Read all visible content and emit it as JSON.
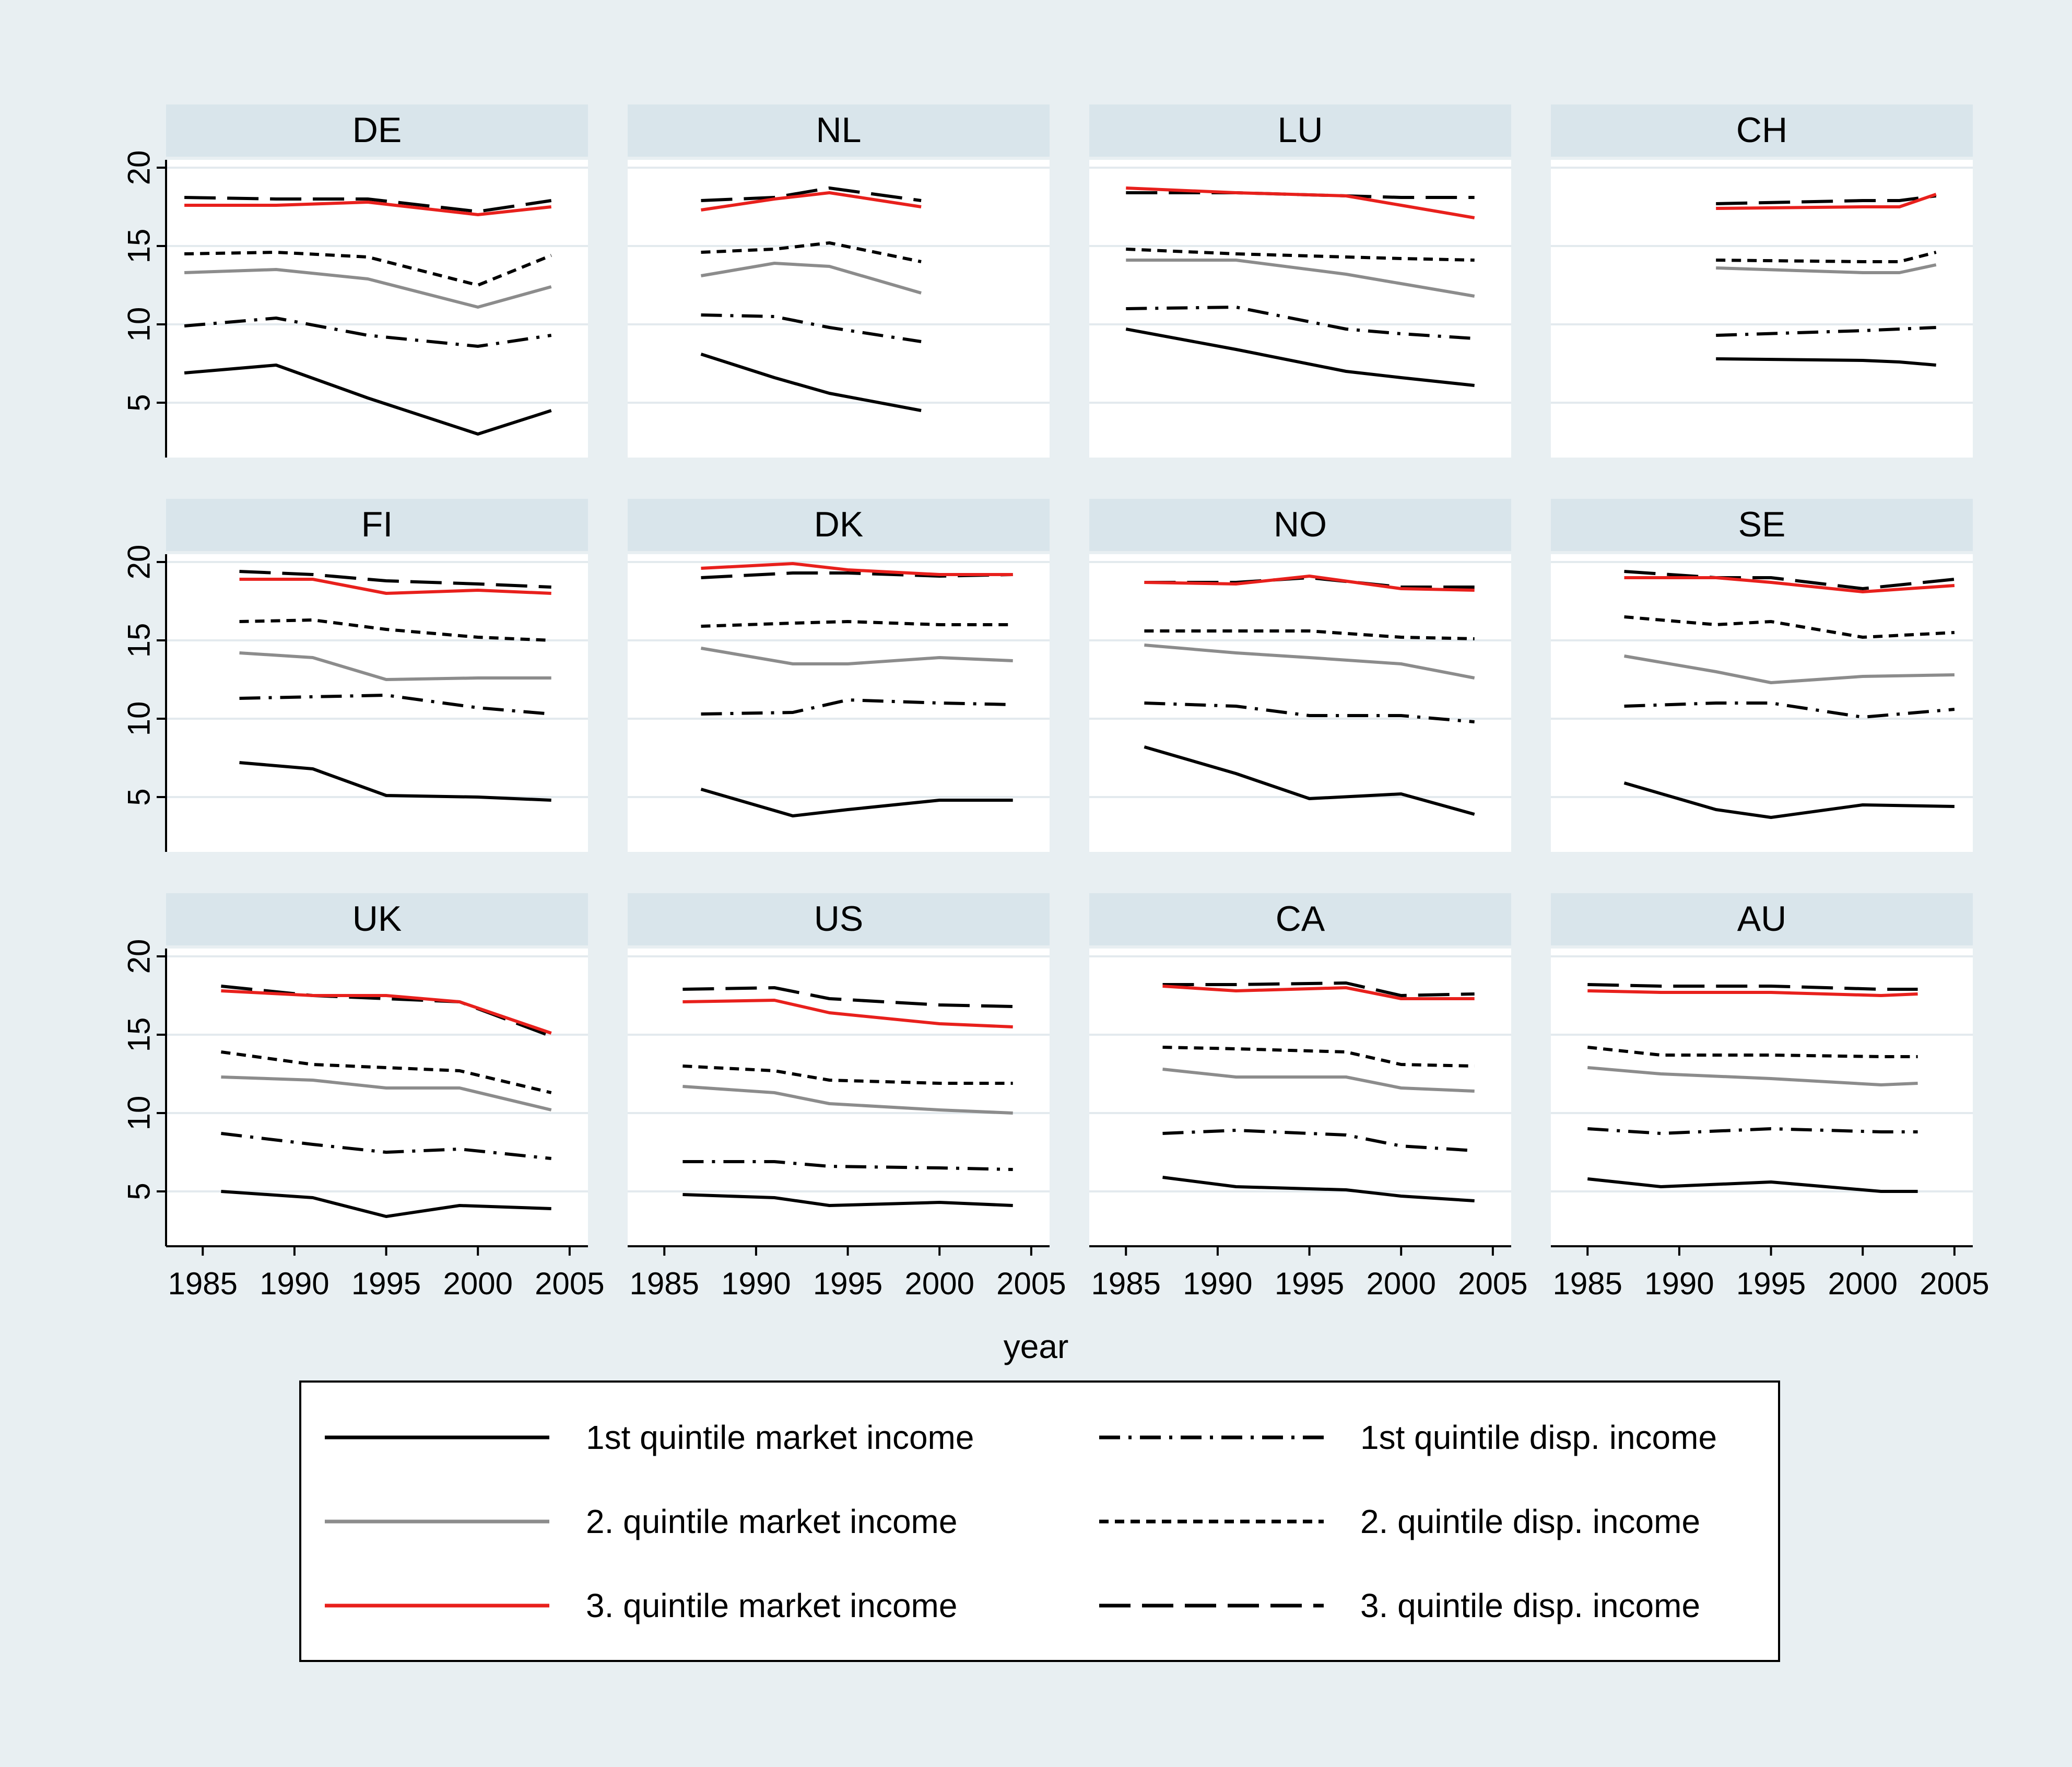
{
  "chart_data": {
    "type": "line",
    "xlabel": "year",
    "ylabel": "",
    "xlim": [
      1983,
      2006
    ],
    "ylim": [
      1.5,
      20.5
    ],
    "xticks": [
      1985,
      1990,
      1995,
      2000,
      2005
    ],
    "yticks": [
      5,
      10,
      15,
      20
    ],
    "grid": true,
    "legend_position": "bottom",
    "colors": {
      "outer_background": "#e8eff2",
      "panel_header": "#d9e5eb",
      "plot_background": "#ffffff",
      "gridline": "#e3eaee",
      "black": "#000000",
      "gray": "#8c8c8c",
      "red": "#e8201c"
    },
    "series_styles": [
      {
        "name": "1st quintile market income",
        "color": "#000000",
        "dash": "solid"
      },
      {
        "name": "2. quintile market income",
        "color": "#8c8c8c",
        "dash": "solid"
      },
      {
        "name": "3. quintile market income",
        "color": "#e8201c",
        "dash": "solid"
      },
      {
        "name": "1st quintile disp. income",
        "color": "#000000",
        "dash": "dashdot"
      },
      {
        "name": "2. quintile disp. income",
        "color": "#000000",
        "dash": "short"
      },
      {
        "name": "3. quintile disp. income",
        "color": "#000000",
        "dash": "long"
      }
    ],
    "legend": [
      "1st quintile market income",
      "1st quintile disp. income",
      "2. quintile market income",
      "2. quintile disp. income",
      "3. quintile market income",
      "3. quintile disp. income"
    ],
    "panels": [
      {
        "title": "DE",
        "x": [
          1984,
          1989,
          1994,
          2000,
          2004
        ],
        "series": [
          {
            "name": "1st quintile market income",
            "values": [
              6.9,
              7.4,
              5.3,
              3.0,
              4.5
            ]
          },
          {
            "name": "2. quintile market income",
            "values": [
              13.3,
              13.5,
              12.9,
              11.1,
              12.4
            ]
          },
          {
            "name": "3. quintile market income",
            "values": [
              17.6,
              17.6,
              17.8,
              17.0,
              17.5
            ]
          },
          {
            "name": "1st quintile disp. income",
            "values": [
              9.9,
              10.4,
              9.3,
              8.6,
              9.3
            ]
          },
          {
            "name": "2. quintile disp. income",
            "values": [
              14.5,
              14.6,
              14.3,
              12.5,
              14.4
            ]
          },
          {
            "name": "3. quintile disp. income",
            "values": [
              18.1,
              18.0,
              18.0,
              17.2,
              17.9
            ]
          }
        ]
      },
      {
        "title": "NL",
        "x": [
          1987,
          1991,
          1994,
          1999
        ],
        "series": [
          {
            "name": "1st quintile market income",
            "values": [
              8.1,
              6.6,
              5.6,
              4.5
            ]
          },
          {
            "name": "2. quintile market income",
            "values": [
              13.1,
              13.9,
              13.7,
              12.0
            ]
          },
          {
            "name": "3. quintile market income",
            "values": [
              17.3,
              18.0,
              18.4,
              17.5
            ]
          },
          {
            "name": "1st quintile disp. income",
            "values": [
              10.6,
              10.5,
              9.8,
              8.9
            ]
          },
          {
            "name": "2. quintile disp. income",
            "values": [
              14.6,
              14.8,
              15.2,
              14.0
            ]
          },
          {
            "name": "3. quintile disp. income",
            "values": [
              17.9,
              18.1,
              18.7,
              17.9
            ]
          }
        ]
      },
      {
        "title": "LU",
        "x": [
          1985,
          1991,
          1997,
          2000,
          2004
        ],
        "series": [
          {
            "name": "1st quintile market income",
            "values": [
              9.7,
              8.4,
              7.0,
              6.6,
              6.1
            ]
          },
          {
            "name": "2. quintile market income",
            "values": [
              14.1,
              14.1,
              13.2,
              12.6,
              11.8
            ]
          },
          {
            "name": "3. quintile market income",
            "values": [
              18.7,
              18.4,
              18.2,
              17.6,
              16.8
            ]
          },
          {
            "name": "1st quintile disp. income",
            "values": [
              11.0,
              11.1,
              9.7,
              9.4,
              9.1
            ]
          },
          {
            "name": "2. quintile disp. income",
            "values": [
              14.8,
              14.5,
              14.3,
              14.2,
              14.1
            ]
          },
          {
            "name": "3. quintile disp. income",
            "values": [
              18.4,
              18.4,
              18.2,
              18.1,
              18.1
            ]
          }
        ]
      },
      {
        "title": "CH",
        "x": [
          1992,
          2000,
          2002,
          2004
        ],
        "series": [
          {
            "name": "1st quintile market income",
            "values": [
              7.8,
              7.7,
              7.6,
              7.4
            ]
          },
          {
            "name": "2. quintile market income",
            "values": [
              13.6,
              13.3,
              13.3,
              13.8
            ]
          },
          {
            "name": "3. quintile market income",
            "values": [
              17.4,
              17.5,
              17.5,
              18.3
            ]
          },
          {
            "name": "1st quintile disp. income",
            "values": [
              9.3,
              9.6,
              9.7,
              9.8
            ]
          },
          {
            "name": "2. quintile disp. income",
            "values": [
              14.1,
              14.0,
              14.0,
              14.6
            ]
          },
          {
            "name": "3. quintile disp. income",
            "values": [
              17.7,
              17.9,
              17.9,
              18.2
            ]
          }
        ]
      },
      {
        "title": "FI",
        "x": [
          1987,
          1991,
          1995,
          2000,
          2004
        ],
        "series": [
          {
            "name": "1st quintile market income",
            "values": [
              7.2,
              6.8,
              5.1,
              5.0,
              4.8
            ]
          },
          {
            "name": "2. quintile market income",
            "values": [
              14.2,
              13.9,
              12.5,
              12.6,
              12.6
            ]
          },
          {
            "name": "3. quintile market income",
            "values": [
              18.9,
              18.9,
              18.0,
              18.2,
              18.0
            ]
          },
          {
            "name": "1st quintile disp. income",
            "values": [
              11.3,
              11.4,
              11.5,
              10.7,
              10.3
            ]
          },
          {
            "name": "2. quintile disp. income",
            "values": [
              16.2,
              16.3,
              15.7,
              15.2,
              15.0
            ]
          },
          {
            "name": "3. quintile disp. income",
            "values": [
              19.4,
              19.2,
              18.8,
              18.6,
              18.4
            ]
          }
        ]
      },
      {
        "title": "DK",
        "x": [
          1987,
          1992,
          1995,
          2000,
          2004
        ],
        "series": [
          {
            "name": "1st quintile market income",
            "values": [
              5.5,
              3.8,
              4.2,
              4.8,
              4.8
            ]
          },
          {
            "name": "2. quintile market income",
            "values": [
              14.5,
              13.5,
              13.5,
              13.9,
              13.7
            ]
          },
          {
            "name": "3. quintile market income",
            "values": [
              19.6,
              19.9,
              19.5,
              19.2,
              19.2
            ]
          },
          {
            "name": "1st quintile disp. income",
            "values": [
              10.3,
              10.4,
              11.2,
              11.0,
              10.9
            ]
          },
          {
            "name": "2. quintile disp. income",
            "values": [
              15.9,
              16.1,
              16.2,
              16.0,
              16.0
            ]
          },
          {
            "name": "3. quintile disp. income",
            "values": [
              19.0,
              19.3,
              19.3,
              19.1,
              19.2
            ]
          }
        ]
      },
      {
        "title": "NO",
        "x": [
          1986,
          1991,
          1995,
          2000,
          2004
        ],
        "series": [
          {
            "name": "1st quintile market income",
            "values": [
              8.2,
              6.5,
              4.9,
              5.2,
              3.9
            ]
          },
          {
            "name": "2. quintile market income",
            "values": [
              14.7,
              14.2,
              13.9,
              13.5,
              12.6
            ]
          },
          {
            "name": "3. quintile market income",
            "values": [
              18.7,
              18.6,
              19.1,
              18.3,
              18.2
            ]
          },
          {
            "name": "1st quintile disp. income",
            "values": [
              11.0,
              10.8,
              10.2,
              10.2,
              9.8
            ]
          },
          {
            "name": "2. quintile disp. income",
            "values": [
              15.6,
              15.6,
              15.6,
              15.2,
              15.1
            ]
          },
          {
            "name": "3. quintile disp. income",
            "values": [
              18.7,
              18.7,
              19.0,
              18.4,
              18.4
            ]
          }
        ]
      },
      {
        "title": "SE",
        "x": [
          1987,
          1992,
          1995,
          2000,
          2005
        ],
        "series": [
          {
            "name": "1st quintile market income",
            "values": [
              5.9,
              4.2,
              3.7,
              4.5,
              4.4
            ]
          },
          {
            "name": "2. quintile market income",
            "values": [
              14.0,
              13.0,
              12.3,
              12.7,
              12.8
            ]
          },
          {
            "name": "3. quintile market income",
            "values": [
              19.0,
              19.0,
              18.7,
              18.1,
              18.5
            ]
          },
          {
            "name": "1st quintile disp. income",
            "values": [
              10.8,
              11.0,
              11.0,
              10.1,
              10.6
            ]
          },
          {
            "name": "2. quintile disp. income",
            "values": [
              16.5,
              16.0,
              16.2,
              15.2,
              15.5
            ]
          },
          {
            "name": "3. quintile disp. income",
            "values": [
              19.4,
              19.0,
              19.0,
              18.3,
              18.9
            ]
          }
        ]
      },
      {
        "title": "UK",
        "x": [
          1986,
          1991,
          1995,
          1999,
          2004
        ],
        "series": [
          {
            "name": "1st quintile market income",
            "values": [
              5.0,
              4.6,
              3.4,
              4.1,
              3.9
            ]
          },
          {
            "name": "2. quintile market income",
            "values": [
              12.3,
              12.1,
              11.6,
              11.6,
              10.2
            ]
          },
          {
            "name": "3. quintile market income",
            "values": [
              17.8,
              17.5,
              17.5,
              17.1,
              15.1
            ]
          },
          {
            "name": "1st quintile disp. income",
            "values": [
              8.7,
              8.0,
              7.5,
              7.7,
              7.1
            ]
          },
          {
            "name": "2. quintile disp. income",
            "values": [
              13.9,
              13.1,
              12.9,
              12.7,
              11.3
            ]
          },
          {
            "name": "3. quintile disp. income",
            "values": [
              18.1,
              17.5,
              17.3,
              17.1,
              14.9
            ]
          }
        ]
      },
      {
        "title": "US",
        "x": [
          1986,
          1991,
          1994,
          2000,
          2004
        ],
        "series": [
          {
            "name": "1st quintile market income",
            "values": [
              4.8,
              4.6,
              4.1,
              4.3,
              4.1
            ]
          },
          {
            "name": "2. quintile market income",
            "values": [
              11.7,
              11.3,
              10.6,
              10.2,
              10.0
            ]
          },
          {
            "name": "3. quintile market income",
            "values": [
              17.1,
              17.2,
              16.4,
              15.7,
              15.5
            ]
          },
          {
            "name": "1st quintile disp. income",
            "values": [
              6.9,
              6.9,
              6.6,
              6.5,
              6.4
            ]
          },
          {
            "name": "2. quintile disp. income",
            "values": [
              13.0,
              12.7,
              12.1,
              11.9,
              11.9
            ]
          },
          {
            "name": "3. quintile disp. income",
            "values": [
              17.9,
              18.0,
              17.3,
              16.9,
              16.8
            ]
          }
        ]
      },
      {
        "title": "CA",
        "x": [
          1987,
          1991,
          1997,
          2000,
          2004
        ],
        "series": [
          {
            "name": "1st quintile market income",
            "values": [
              5.9,
              5.3,
              5.1,
              4.7,
              4.4
            ]
          },
          {
            "name": "2. quintile market income",
            "values": [
              12.8,
              12.3,
              12.3,
              11.6,
              11.4
            ]
          },
          {
            "name": "3. quintile market income",
            "values": [
              18.1,
              17.8,
              18.0,
              17.3,
              17.3
            ]
          },
          {
            "name": "1st quintile disp. income",
            "values": [
              8.7,
              8.9,
              8.6,
              7.9,
              7.6
            ]
          },
          {
            "name": "2. quintile disp. income",
            "values": [
              14.2,
              14.1,
              13.9,
              13.1,
              13.0
            ]
          },
          {
            "name": "3. quintile disp. income",
            "values": [
              18.2,
              18.2,
              18.3,
              17.5,
              17.6
            ]
          }
        ]
      },
      {
        "title": "AU",
        "x": [
          1985,
          1989,
          1995,
          2001,
          2003
        ],
        "series": [
          {
            "name": "1st quintile market income",
            "values": [
              5.8,
              5.3,
              5.6,
              5.0,
              5.0
            ]
          },
          {
            "name": "2. quintile market income",
            "values": [
              12.9,
              12.5,
              12.2,
              11.8,
              11.9
            ]
          },
          {
            "name": "3. quintile market income",
            "values": [
              17.8,
              17.7,
              17.7,
              17.5,
              17.6
            ]
          },
          {
            "name": "1st quintile disp. income",
            "values": [
              9.0,
              8.7,
              9.0,
              8.8,
              8.8
            ]
          },
          {
            "name": "2. quintile disp. income",
            "values": [
              14.2,
              13.7,
              13.7,
              13.6,
              13.6
            ]
          },
          {
            "name": "3. quintile disp. income",
            "values": [
              18.2,
              18.1,
              18.1,
              17.9,
              17.9
            ]
          }
        ]
      }
    ]
  }
}
